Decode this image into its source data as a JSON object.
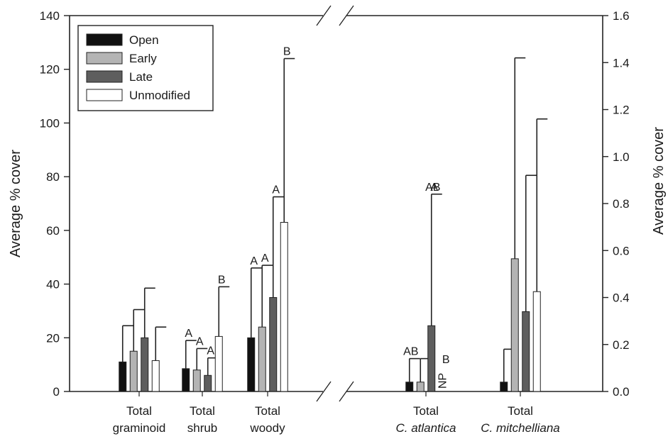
{
  "chart_data": {
    "type": "bar",
    "ylabel_left": "Average % cover",
    "ylabel_right": "Average % cover",
    "left_axis": {
      "ylim": [
        0,
        140
      ],
      "ticks": [
        0,
        20,
        40,
        60,
        80,
        100,
        120,
        140
      ]
    },
    "right_axis": {
      "ylim": [
        0,
        1.6
      ],
      "ticks": [
        "0.0",
        "0.2",
        "0.4",
        "0.6",
        "0.8",
        "1.0",
        "1.2",
        "1.4",
        "1.6"
      ]
    },
    "legend": {
      "placement": "top-left",
      "entries": [
        {
          "name": "Open",
          "color": "#111111"
        },
        {
          "name": "Early",
          "color": "#b4b4b4"
        },
        {
          "name": "Late",
          "color": "#5e5e5e"
        },
        {
          "name": "Unmodified",
          "color": "#ffffff"
        }
      ]
    },
    "groups": [
      {
        "label_lines": [
          "Total",
          "graminoid"
        ],
        "italic_second": false,
        "axis": "left",
        "bars": [
          {
            "series": "Open",
            "value": 11,
            "err_upper": 24.5,
            "letter": ""
          },
          {
            "series": "Early",
            "value": 15,
            "err_upper": 30.5,
            "letter": ""
          },
          {
            "series": "Late",
            "value": 20,
            "err_upper": 38.5,
            "letter": ""
          },
          {
            "series": "Unmodified",
            "value": 11.5,
            "err_upper": 24,
            "letter": ""
          }
        ]
      },
      {
        "label_lines": [
          "Total",
          "shrub"
        ],
        "italic_second": false,
        "axis": "left",
        "bars": [
          {
            "series": "Open",
            "value": 8.5,
            "err_upper": 19,
            "letter": "A"
          },
          {
            "series": "Early",
            "value": 8,
            "err_upper": 16,
            "letter": "A"
          },
          {
            "series": "Late",
            "value": 6,
            "err_upper": 12.5,
            "letter": "A"
          },
          {
            "series": "Unmodified",
            "value": 20.5,
            "err_upper": 39,
            "letter": "B"
          }
        ]
      },
      {
        "label_lines": [
          "Total",
          "woody"
        ],
        "italic_second": false,
        "axis": "left",
        "bars": [
          {
            "series": "Open",
            "value": 20,
            "err_upper": 46,
            "letter": "A"
          },
          {
            "series": "Early",
            "value": 24,
            "err_upper": 47,
            "letter": "A"
          },
          {
            "series": "Late",
            "value": 35,
            "err_upper": 72.5,
            "letter": "A"
          },
          {
            "series": "Unmodified",
            "value": 63,
            "err_upper": 124,
            "letter": "B"
          }
        ]
      },
      {
        "label_lines": [
          "Total",
          "C. atlantica"
        ],
        "italic_second": true,
        "axis": "right",
        "bars": [
          {
            "series": "Open",
            "value": 0.04,
            "err_upper": 0.14,
            "letter": "AB"
          },
          {
            "series": "Early",
            "value": 0.04,
            "err_upper": 0.14,
            "letter": ""
          },
          {
            "series": "Late",
            "value": 0.28,
            "err_upper": 0.84,
            "letter": "AB"
          },
          {
            "series": "Unmodified",
            "value": null,
            "err_upper": null,
            "letter": "B",
            "note": "NP"
          }
        ]
      },
      {
        "label_lines": [
          "Total",
          "C. mitchelliana"
        ],
        "italic_second": true,
        "axis": "right",
        "bars": [
          {
            "series": "Open",
            "value": 0.04,
            "err_upper": 0.18,
            "letter": ""
          },
          {
            "series": "Early",
            "value": 0.565,
            "err_upper": 1.42,
            "letter": ""
          },
          {
            "series": "Late",
            "value": 0.34,
            "err_upper": 0.92,
            "letter": ""
          },
          {
            "series": "Unmodified",
            "value": 0.425,
            "err_upper": 1.16,
            "letter": ""
          }
        ]
      }
    ],
    "annotations": {
      "late_atlantica_top_letter": "A"
    },
    "grid": false
  }
}
